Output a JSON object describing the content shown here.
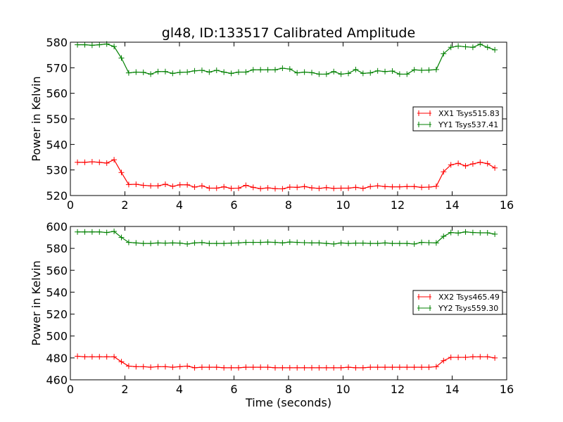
{
  "chart_data": [
    {
      "type": "line",
      "title": "gl48, ID:133517 Calibrated Amplitude",
      "xlabel": "",
      "ylabel": "Power in Kelvin",
      "xlim": [
        0,
        16
      ],
      "ylim": [
        520,
        580
      ],
      "xticks": [
        "0",
        "2",
        "4",
        "6",
        "8",
        "10",
        "12",
        "14",
        "16"
      ],
      "yticks": [
        "520",
        "530",
        "540",
        "550",
        "560",
        "570",
        "580"
      ],
      "legend_placement": "center-right",
      "x_start": 0.26,
      "x_step": 0.2685,
      "series": [
        {
          "name": "XX1 Tsys515.83",
          "color": "#ff0000",
          "values": [
            533,
            533,
            533.2,
            533,
            532.7,
            534,
            529,
            524.3,
            524.4,
            524,
            523.8,
            523.8,
            524.4,
            523.6,
            524.2,
            524.2,
            523.3,
            523.8,
            522.9,
            522.9,
            523.4,
            522.8,
            522.9,
            524,
            523.2,
            522.7,
            523,
            522.7,
            522.6,
            523.3,
            523.2,
            523.5,
            523,
            522.8,
            523.1,
            522.8,
            522.9,
            522.9,
            523.2,
            522.8,
            523.5,
            523.8,
            523.5,
            523.4,
            523.4,
            523.5,
            523.5,
            523.2,
            523.3,
            523.6,
            529.3,
            532,
            532.6,
            531.6,
            532.4,
            533,
            532.5,
            530.8
          ]
        },
        {
          "name": "YY1 Tsys537.41",
          "color": "#008000",
          "values": [
            579,
            579,
            578.8,
            579,
            579.3,
            578.3,
            573.8,
            568,
            568.3,
            568.2,
            567.5,
            568.5,
            568.5,
            567.8,
            568.2,
            568.3,
            568.8,
            569,
            568.3,
            569,
            568.3,
            567.8,
            568.3,
            568.3,
            569.2,
            569.2,
            569.2,
            569.2,
            569.8,
            569.5,
            568,
            568.3,
            568.1,
            567.5,
            567.5,
            568.5,
            567.5,
            567.8,
            569.3,
            567.8,
            568,
            568.8,
            568.5,
            568.7,
            567.5,
            567.5,
            569.2,
            569,
            569.1,
            569.3,
            575.5,
            578,
            578.5,
            578.2,
            578,
            579.2,
            578,
            577
          ]
        }
      ]
    },
    {
      "type": "line",
      "title": "",
      "xlabel": "Time (seconds)",
      "ylabel": "Power in Kelvin",
      "xlim": [
        0,
        16
      ],
      "ylim": [
        460,
        600
      ],
      "xticks": [
        "0",
        "2",
        "4",
        "6",
        "8",
        "10",
        "12",
        "14",
        "16"
      ],
      "yticks": [
        "460",
        "480",
        "500",
        "520",
        "540",
        "560",
        "580",
        "600"
      ],
      "legend_placement": "center-right",
      "x_start": 0.26,
      "x_step": 0.2685,
      "series": [
        {
          "name": "XX2 Tsys465.49",
          "color": "#ff0000",
          "values": [
            481.5,
            481,
            481,
            481,
            481,
            481,
            476.5,
            472.5,
            472,
            472,
            471.5,
            472,
            472,
            471.5,
            472,
            472.5,
            471,
            471.5,
            471.5,
            471.5,
            471,
            471,
            471,
            471.5,
            471.5,
            471.5,
            471.5,
            471,
            471,
            471,
            471,
            471,
            471,
            471,
            471,
            471,
            471,
            471.5,
            471,
            471,
            471.5,
            471.5,
            471.5,
            471.5,
            471.5,
            471.5,
            471.5,
            471.5,
            471.5,
            472,
            477.5,
            480.5,
            480.5,
            480.5,
            481,
            481,
            481,
            480
          ]
        },
        {
          "name": "YY2 Tsys559.30",
          "color": "#008000",
          "values": [
            595,
            595,
            595,
            595,
            594.5,
            595.5,
            590,
            585.5,
            585,
            584.5,
            584.5,
            585,
            584.8,
            585,
            584.8,
            584,
            585,
            585.3,
            584.5,
            584.5,
            584.5,
            584.8,
            585,
            585.5,
            585.5,
            585.5,
            585.7,
            585.5,
            585,
            585.8,
            585.5,
            585.2,
            585,
            585,
            584.5,
            584,
            585,
            584.5,
            584.8,
            584.8,
            584.5,
            584.5,
            585,
            584.5,
            584.5,
            584.5,
            584,
            585.5,
            585.2,
            585,
            591,
            594.5,
            594,
            595,
            594.5,
            594.2,
            594.2,
            593
          ]
        }
      ]
    }
  ]
}
